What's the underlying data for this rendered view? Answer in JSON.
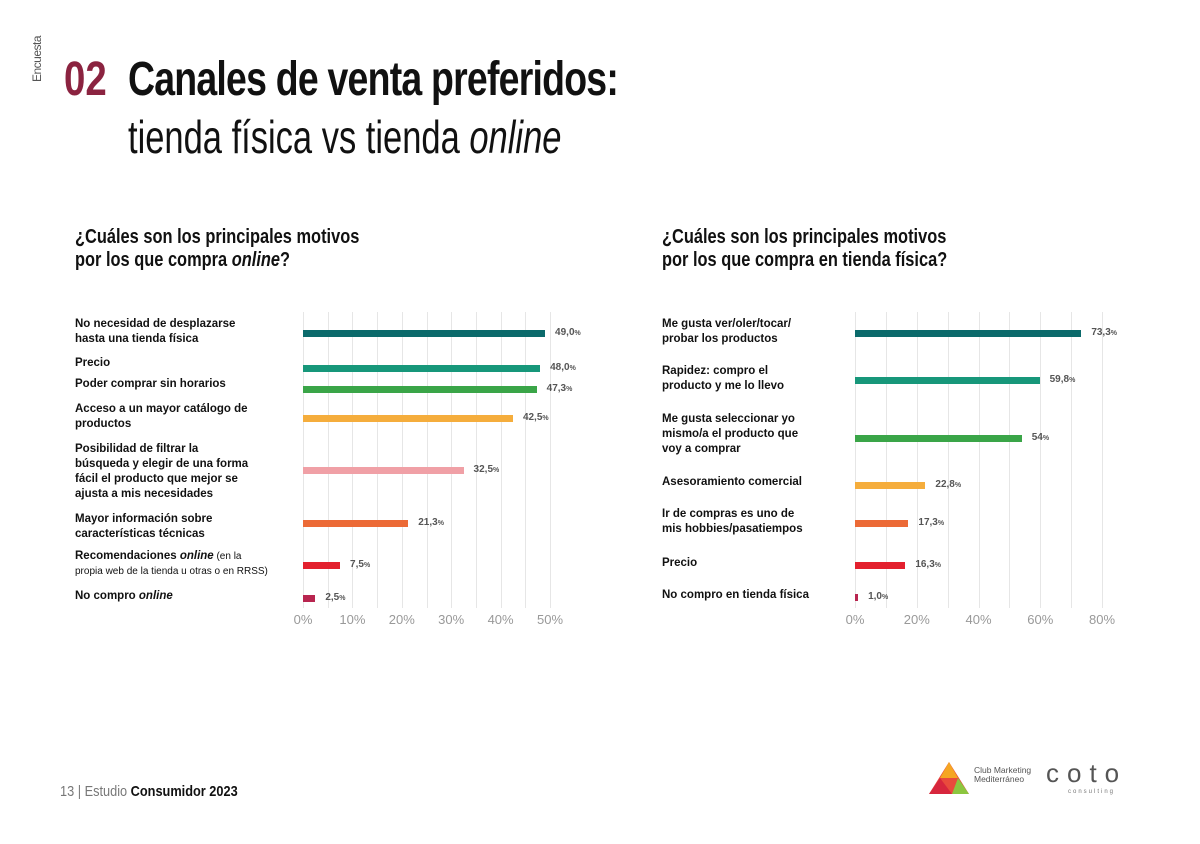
{
  "header": {
    "survey_tag": "Encuesta",
    "number": "02",
    "title_line1": "Canales de venta preferidos:",
    "title_line2_a": "tienda física vs tienda ",
    "title_line2_b": "online"
  },
  "footer": {
    "page": "13",
    "separator": "|",
    "study": "Estudio",
    "brand": "Consumidor 2023"
  },
  "logos": {
    "club": "Club Marketing Mediterráneo",
    "coto": "coto",
    "coto_sub": "consulting"
  },
  "chart_data": [
    {
      "type": "bar",
      "orientation": "horizontal",
      "title_line1": "¿Cuáles son los principales motivos",
      "title_line2_a": "por los que compra ",
      "title_line2_b": "online",
      "title_line2_c": "?",
      "categories": [
        [
          [
            "No necesidad de desplazarse"
          ],
          [
            "hasta una tienda física"
          ]
        ],
        [
          [
            "Precio"
          ]
        ],
        [
          [
            "Poder comprar sin horarios"
          ]
        ],
        [
          [
            "Acceso a un mayor catálogo de"
          ],
          [
            "productos"
          ]
        ],
        [
          [
            "Posibilidad de filtrar la"
          ],
          [
            "búsqueda y elegir de una forma"
          ],
          [
            "fácil el producto que mejor se"
          ],
          [
            "ajusta a mis necesidades"
          ]
        ],
        [
          [
            "Mayor información sobre"
          ],
          [
            "características técnicas"
          ]
        ],
        [
          [
            "Recomendaciones ",
            "i:online",
            "s: (en la"
          ],
          [
            "s:propia web de la tienda u otras o en RRSS)"
          ]
        ],
        [
          [
            "No compro ",
            "i:online"
          ]
        ]
      ],
      "values": [
        49.0,
        48.0,
        47.3,
        42.5,
        32.5,
        21.3,
        7.5,
        2.5
      ],
      "value_labels": [
        "49,0",
        "48,0",
        "47,3",
        "42,5",
        "32,5",
        "21,3",
        "7,5",
        "2,5"
      ],
      "colors": [
        "#0b6a6b",
        "#17977a",
        "#3aa548",
        "#f5ad3c",
        "#f0a0a6",
        "#ec6a36",
        "#e3202e",
        "#b8254f"
      ],
      "xlim": [
        0,
        50
      ],
      "xticks": [
        0,
        10,
        20,
        30,
        40,
        50
      ],
      "xtick_labels": [
        "0%",
        "10%",
        "20%",
        "30%",
        "40%",
        "50%"
      ],
      "grid_step": 5
    },
    {
      "type": "bar",
      "orientation": "horizontal",
      "title_line1": "¿Cuáles son los principales motivos",
      "title_line2_a": "por los que compra en tienda física?",
      "title_line2_b": "",
      "title_line2_c": "",
      "categories": [
        [
          [
            "Me gusta ver/oler/tocar/"
          ],
          [
            "probar los productos"
          ]
        ],
        [
          [
            "Rapidez: compro el"
          ],
          [
            "producto y me lo llevo"
          ]
        ],
        [
          [
            "Me gusta seleccionar yo"
          ],
          [
            "mismo/a el producto que"
          ],
          [
            "voy a comprar"
          ]
        ],
        [
          [
            "Asesoramiento comercial"
          ]
        ],
        [
          [
            "Ir de compras es uno de"
          ],
          [
            "mis hobbies/pasatiempos"
          ]
        ],
        [
          [
            "Precio"
          ]
        ],
        [
          [
            "No compro en tienda física"
          ]
        ]
      ],
      "values": [
        73.3,
        59.8,
        54,
        22.8,
        17.3,
        16.3,
        1.0
      ],
      "value_labels": [
        "73,3",
        "59,8",
        "54",
        "22,8",
        "17,3",
        "16,3",
        "1,0"
      ],
      "colors": [
        "#0b6a6b",
        "#17977a",
        "#3aa548",
        "#f5ad3c",
        "#ec6a36",
        "#e3202e",
        "#b8254f"
      ],
      "xlim": [
        0,
        80
      ],
      "xticks": [
        0,
        20,
        40,
        60,
        80
      ],
      "xtick_labels": [
        "0%",
        "20%",
        "40%",
        "60%",
        "80%"
      ],
      "grid_step": 10
    }
  ]
}
